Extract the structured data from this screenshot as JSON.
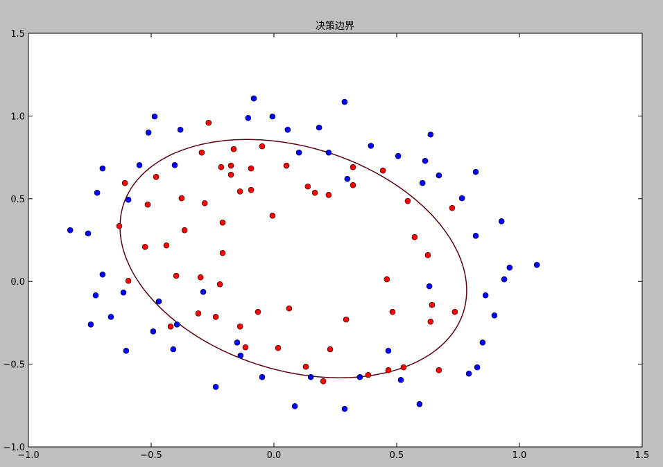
{
  "chart_data": {
    "type": "scatter",
    "title": "决策边界",
    "xlabel": "",
    "ylabel": "",
    "xlim": [
      -1.0,
      1.5
    ],
    "ylim": [
      -1.0,
      1.5
    ],
    "xticks": [
      "−1.0",
      "−0.5",
      "0.0",
      "0.5",
      "1.0",
      "1.5"
    ],
    "yticks": [
      "−1.0",
      "−0.5",
      "0.0",
      "0.5",
      "1.0",
      "1.5"
    ],
    "grid": false,
    "colors": {
      "background": "#bfbfbf",
      "plot_area": "#ffffff",
      "class_0": "#0000ff",
      "class_1": "#ff0000",
      "boundary": "#5a0010",
      "marker_edge": "#000000"
    },
    "series": [
      {
        "color": "#0000ff",
        "points": [
          [
            -0.83,
            0.31
          ],
          [
            -0.757,
            0.29
          ],
          [
            -0.72,
            0.536
          ],
          [
            -0.698,
            0.683
          ],
          [
            -0.698,
            0.042
          ],
          [
            -0.726,
            -0.084
          ],
          [
            -0.746,
            -0.26
          ],
          [
            -0.664,
            -0.214
          ],
          [
            -0.613,
            -0.067
          ],
          [
            -0.602,
            -0.419
          ],
          [
            -0.593,
            0.494
          ],
          [
            -0.548,
            0.703
          ],
          [
            -0.511,
            0.9
          ],
          [
            -0.486,
            0.997
          ],
          [
            -0.469,
            -0.121
          ],
          [
            -0.492,
            -0.302
          ],
          [
            -0.41,
            -0.41
          ],
          [
            -0.404,
            0.703
          ],
          [
            -0.381,
            0.917
          ],
          [
            -0.395,
            -0.26
          ],
          [
            -0.288,
            -0.063
          ],
          [
            -0.237,
            -0.637
          ],
          [
            -0.15,
            -0.369
          ],
          [
            -0.136,
            -0.448
          ],
          [
            -0.105,
            0.988
          ],
          [
            -0.082,
            1.106
          ],
          [
            -0.048,
            -0.578
          ],
          [
            -0.006,
            0.997
          ],
          [
            0.056,
            0.917
          ],
          [
            0.102,
            0.779
          ],
          [
            0.085,
            -0.754
          ],
          [
            0.15,
            -0.578
          ],
          [
            0.184,
            0.93
          ],
          [
            0.223,
            0.779
          ],
          [
            0.288,
            1.085
          ],
          [
            0.299,
            0.62
          ],
          [
            0.288,
            -0.77
          ],
          [
            0.35,
            -0.578
          ],
          [
            0.395,
            0.82
          ],
          [
            0.466,
            -0.419
          ],
          [
            0.506,
            0.758
          ],
          [
            0.517,
            -0.595
          ],
          [
            0.593,
            -0.741
          ],
          [
            0.605,
            0.595
          ],
          [
            0.616,
            0.729
          ],
          [
            0.633,
            -0.029
          ],
          [
            0.638,
            0.888
          ],
          [
            0.672,
            0.641
          ],
          [
            0.766,
            0.503
          ],
          [
            0.794,
            -0.557
          ],
          [
            0.822,
            0.276
          ],
          [
            0.822,
            0.662
          ],
          [
            0.828,
            -0.519
          ],
          [
            0.85,
            -0.369
          ],
          [
            0.862,
            -0.084
          ],
          [
            0.898,
            -0.205
          ],
          [
            0.927,
            0.364
          ],
          [
            0.938,
            0.013
          ],
          [
            0.96,
            0.084
          ],
          [
            1.071,
            0.1
          ]
        ]
      },
      {
        "color": "#ff0000",
        "points": [
          [
            -0.607,
            0.595
          ],
          [
            -0.63,
            0.335
          ],
          [
            -0.593,
            0.004
          ],
          [
            -0.525,
            0.209
          ],
          [
            -0.514,
            0.465
          ],
          [
            -0.48,
            0.632
          ],
          [
            -0.438,
            0.218
          ],
          [
            -0.421,
            -0.272
          ],
          [
            -0.398,
            0.034
          ],
          [
            -0.376,
            0.503
          ],
          [
            -0.364,
            0.31
          ],
          [
            -0.308,
            -0.193
          ],
          [
            -0.299,
            0.025
          ],
          [
            -0.294,
            0.779
          ],
          [
            -0.282,
            0.473
          ],
          [
            -0.266,
            0.959
          ],
          [
            -0.237,
            -0.214
          ],
          [
            -0.22,
            -0.017
          ],
          [
            -0.215,
            0.691
          ],
          [
            -0.209,
            0.356
          ],
          [
            -0.209,
            0.172
          ],
          [
            -0.175,
            0.7
          ],
          [
            -0.175,
            0.645
          ],
          [
            -0.164,
            0.8
          ],
          [
            -0.138,
            0.544
          ],
          [
            -0.138,
            -0.272
          ],
          [
            -0.116,
            -0.398
          ],
          [
            -0.093,
            0.683
          ],
          [
            -0.093,
            0.553
          ],
          [
            -0.065,
            -0.184
          ],
          [
            -0.048,
            0.817
          ],
          [
            -0.006,
            0.398
          ],
          [
            0.017,
            -0.402
          ],
          [
            0.051,
            0.7
          ],
          [
            0.062,
            -0.163
          ],
          [
            0.13,
            -0.515
          ],
          [
            0.138,
            0.574
          ],
          [
            0.167,
            0.536
          ],
          [
            0.201,
            -0.603
          ],
          [
            0.223,
            0.523
          ],
          [
            0.229,
            -0.41
          ],
          [
            0.294,
            -0.23
          ],
          [
            0.322,
            0.691
          ],
          [
            0.322,
            0.582
          ],
          [
            0.384,
            -0.565
          ],
          [
            0.444,
            0.67
          ],
          [
            0.46,
            0.013
          ],
          [
            0.466,
            -0.536
          ],
          [
            0.483,
            -0.184
          ],
          [
            0.528,
            -0.519
          ],
          [
            0.545,
            0.486
          ],
          [
            0.573,
            0.268
          ],
          [
            0.627,
            0.159
          ],
          [
            0.638,
            -0.243
          ],
          [
            0.644,
            -0.142
          ],
          [
            0.672,
            -0.536
          ],
          [
            0.726,
            0.444
          ],
          [
            0.737,
            -0.184
          ]
        ]
      }
    ],
    "decision_boundary": {
      "shape": "ellipse",
      "center": [
        0.079,
        0.138
      ],
      "x_amplitude": 0.706,
      "y_amplitude": 0.72,
      "phase_deg": 74.5
    }
  }
}
